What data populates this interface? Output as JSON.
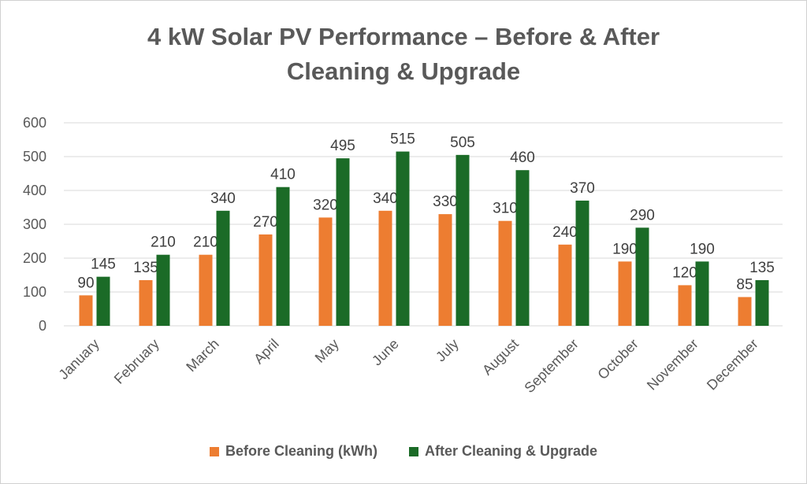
{
  "chart_data": {
    "type": "bar",
    "title": "4 kW Solar PV Performance – Before & After Cleaning & Upgrade",
    "title_lines": [
      "4 kW Solar PV Performance – Before & After",
      "Cleaning & Upgrade"
    ],
    "categories": [
      "January",
      "February",
      "March",
      "April",
      "May",
      "June",
      "July",
      "August",
      "September",
      "October",
      "November",
      "December"
    ],
    "series": [
      {
        "name": "Before Cleaning (kWh)",
        "color": "#ED7D31",
        "values": [
          90,
          135,
          210,
          270,
          320,
          340,
          330,
          310,
          240,
          190,
          120,
          85
        ]
      },
      {
        "name": "After Cleaning & Upgrade",
        "color": "#1B6B27",
        "values": [
          145,
          210,
          340,
          410,
          495,
          515,
          505,
          460,
          370,
          290,
          190,
          135
        ]
      }
    ],
    "ylim": [
      0,
      600
    ],
    "yticks": [
      0,
      100,
      200,
      300,
      400,
      500,
      600
    ],
    "grid": true,
    "data_labels": true,
    "legend": "bottom",
    "xlabel": "",
    "ylabel": ""
  }
}
